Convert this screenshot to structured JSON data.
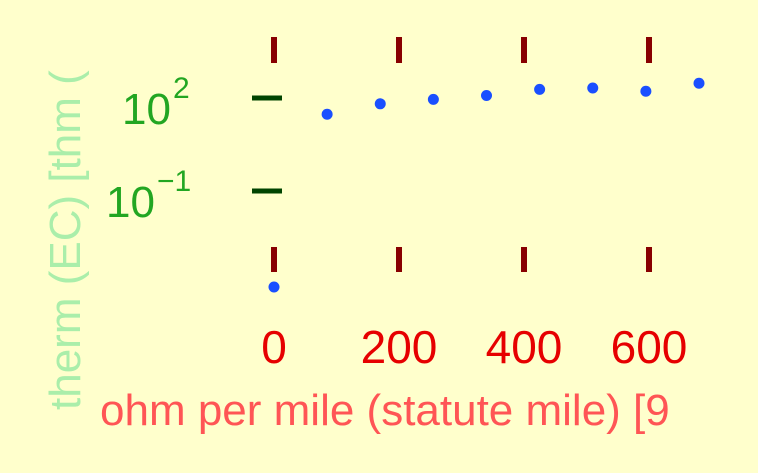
{
  "chart_data": {
    "type": "scatter",
    "title": "",
    "xlabel": "ohm per mile (statute mile) [9",
    "ylabel": "therm (EC) [thm (",
    "x_ticks": [
      "0",
      "200",
      "400",
      "600"
    ],
    "x_tick_values": [
      0,
      200,
      400,
      600
    ],
    "y_ticks": [
      {
        "base": "10",
        "exp": "2",
        "value": 100
      },
      {
        "base": "10",
        "exp": "−1",
        "value": 0.1
      }
    ],
    "y_scale": "log",
    "xlim": [
      0,
      760
    ],
    "grid": false,
    "series": [
      {
        "color": "#1a4fff",
        "points": [
          {
            "x": 0,
            "y": 8e-05
          },
          {
            "x": 85,
            "y": 30
          },
          {
            "x": 170,
            "y": 65
          },
          {
            "x": 255,
            "y": 90
          },
          {
            "x": 340,
            "y": 120
          },
          {
            "x": 425,
            "y": 190
          },
          {
            "x": 510,
            "y": 210
          },
          {
            "x": 595,
            "y": 165
          },
          {
            "x": 680,
            "y": 300
          }
        ]
      }
    ],
    "colors": {
      "background": "#ffffcc",
      "x_tick_mark": "#880000",
      "y_tick_mark": "#004400",
      "x_tick_label": "#e60000",
      "y_tick_label": "#22a622",
      "xlabel": "#ff5555",
      "ylabel": "#aaeeaa",
      "point": "#1a4fff"
    }
  }
}
